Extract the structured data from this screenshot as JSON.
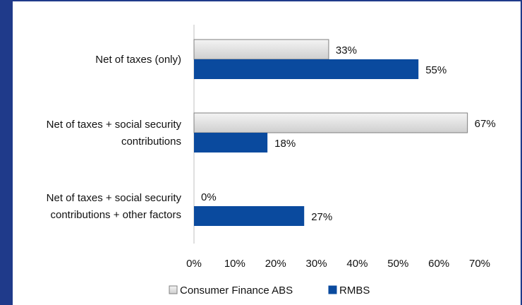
{
  "chart_data": {
    "type": "bar",
    "orientation": "horizontal",
    "categories": [
      [
        "Net of taxes (only)"
      ],
      [
        "Net of taxes + social security",
        "contributions"
      ],
      [
        "Net of taxes + social security",
        "contributions + other factors"
      ]
    ],
    "series": [
      {
        "name": "Consumer Finance ABS",
        "values": [
          33,
          67,
          0
        ],
        "labels": [
          "33%",
          "67%",
          "0%"
        ],
        "color": "#d9d9d9",
        "stroke": "#7f7f7f"
      },
      {
        "name": "RMBS",
        "values": [
          55,
          18,
          27
        ],
        "labels": [
          "55%",
          "18%",
          "27%"
        ],
        "color": "#0a4a9e",
        "stroke": "#0a4a9e"
      }
    ],
    "xlim": [
      0,
      70
    ],
    "xticks": [
      0,
      10,
      20,
      30,
      40,
      50,
      60,
      70
    ],
    "xtick_labels": [
      "0%",
      "10%",
      "20%",
      "30%",
      "40%",
      "50%",
      "60%",
      "70%"
    ],
    "legend_position": "bottom",
    "grid": false
  },
  "colors": {
    "frame": "#1f3a8a",
    "axis": "#bfbfbf"
  }
}
